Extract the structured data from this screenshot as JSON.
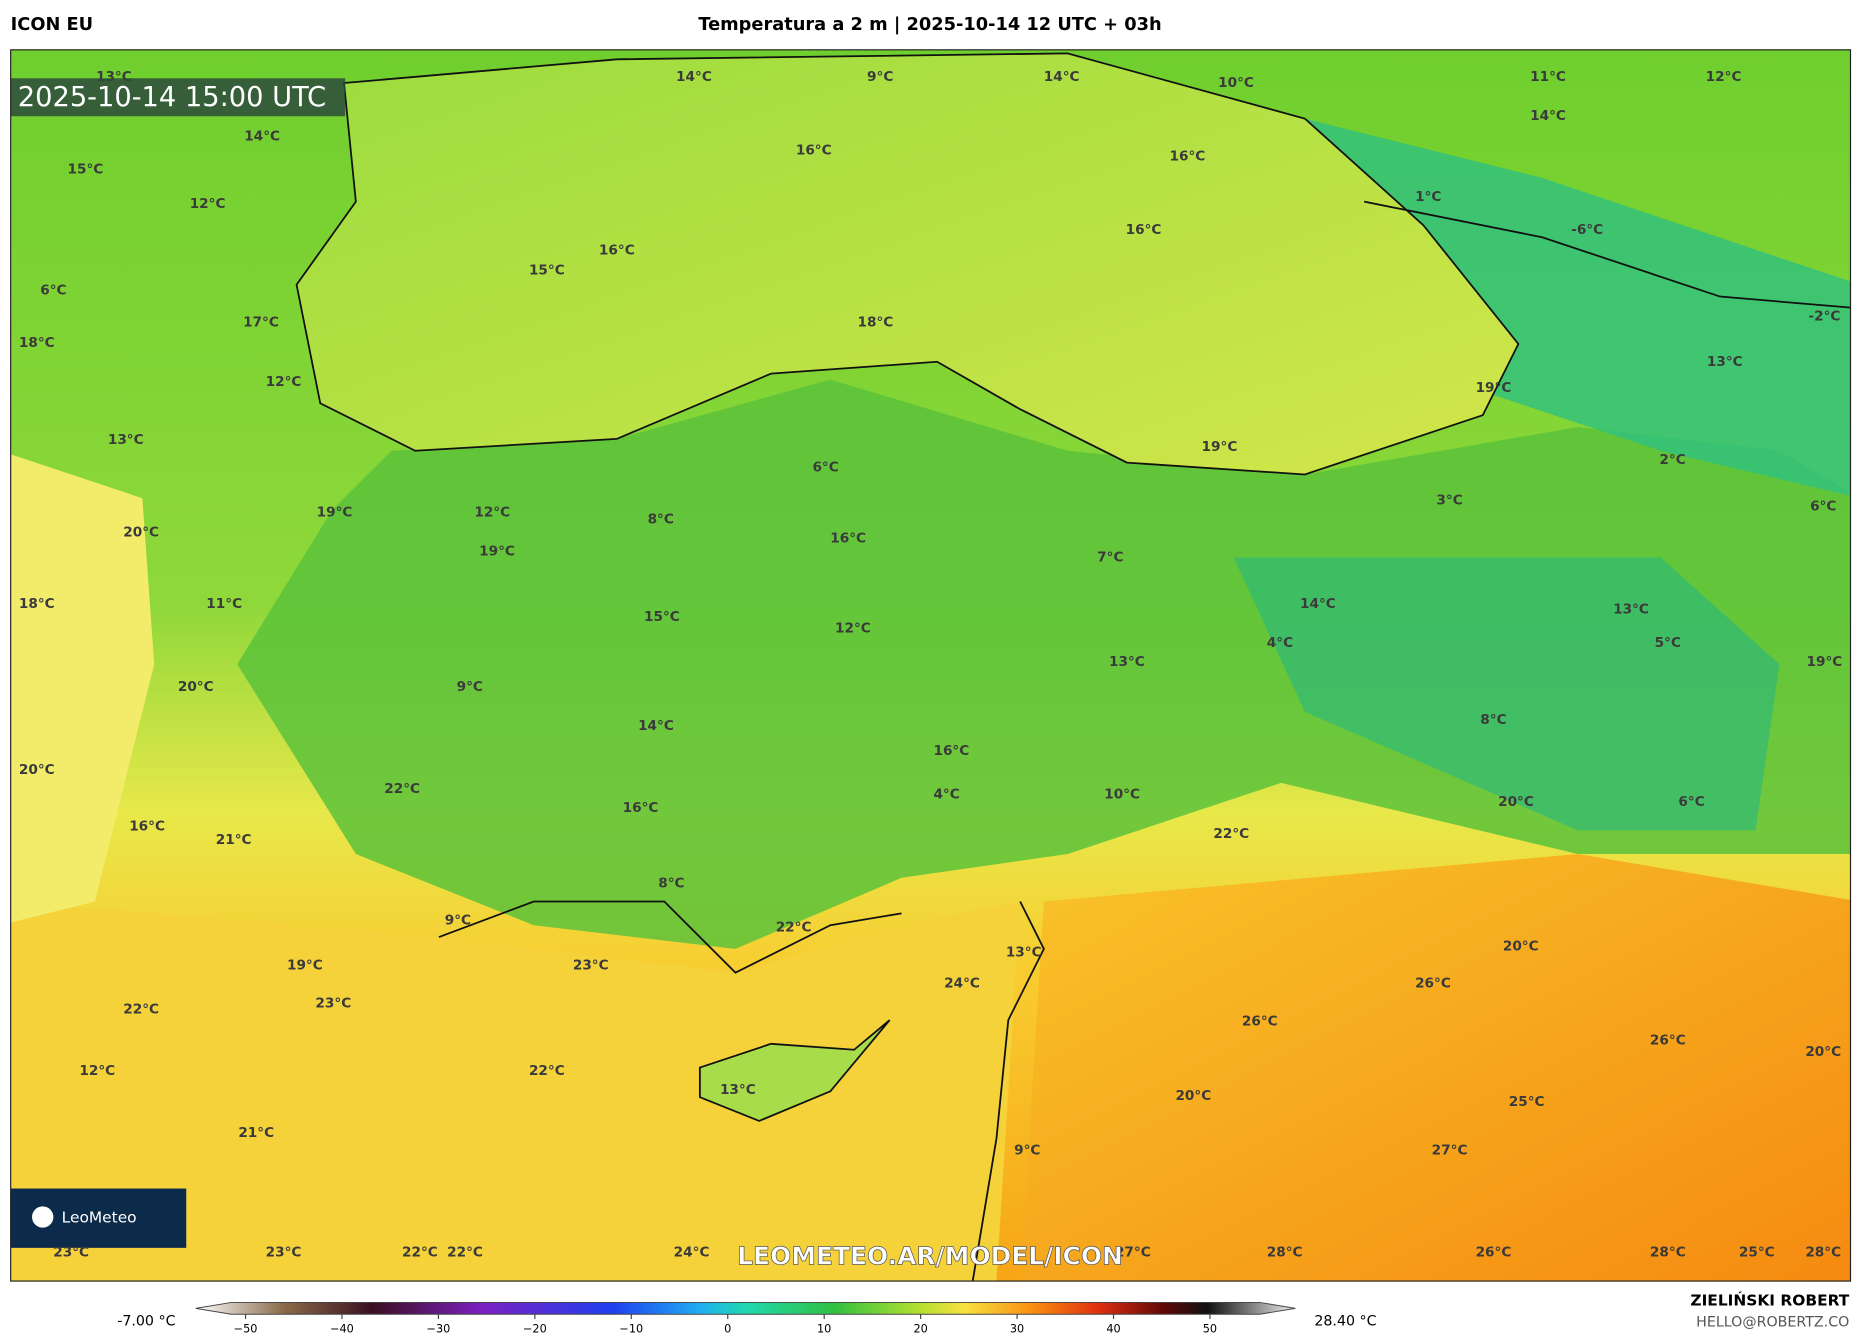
{
  "header": {
    "model": "ICON EU",
    "title": "Temperatura a 2 m | 2025-10-14 12 UTC + 03h"
  },
  "map": {
    "timestamp": "2025-10-14 15:00 UTC",
    "watermark": "LEOMETEO.AR/MODEL/ICON",
    "logo": "LeoMeteo",
    "labels": [
      "13°C",
      "14°C",
      "9°C",
      "14°C",
      "10°C",
      "11°C",
      "12°C",
      "14°C",
      "14°C",
      "15°C",
      "16°C",
      "16°C",
      "12°C",
      "1°C",
      "-6°C",
      "16°C",
      "16°C",
      "15°C",
      "6°C",
      "18°C",
      "17°C",
      "-2°C",
      "18°C",
      "13°C",
      "19°C",
      "12°C",
      "19°C",
      "13°C",
      "2°C",
      "6°C",
      "3°C",
      "6°C",
      "19°C",
      "12°C",
      "8°C",
      "20°C",
      "16°C",
      "19°C",
      "7°C",
      "18°C",
      "11°C",
      "14°C",
      "13°C",
      "15°C",
      "12°C",
      "4°C",
      "5°C",
      "13°C",
      "19°C",
      "20°C",
      "9°C",
      "14°C",
      "8°C",
      "16°C",
      "20°C",
      "22°C",
      "4°C",
      "10°C",
      "16°C",
      "20°C",
      "6°C",
      "16°C",
      "22°C",
      "21°C",
      "8°C",
      "22°C",
      "9°C",
      "20°C",
      "13°C",
      "23°C",
      "19°C",
      "24°C",
      "26°C",
      "23°C",
      "22°C",
      "26°C",
      "26°C",
      "20°C",
      "12°C",
      "22°C",
      "13°C",
      "20°C",
      "25°C",
      "9°C",
      "27°C",
      "21°C",
      "23°C",
      "23°C",
      "22°C",
      "22°C",
      "24°C",
      "27°C",
      "28°C",
      "26°C",
      "28°C",
      "25°C",
      "28°C"
    ]
  },
  "colorbar": {
    "min_label": "-7.00 °C",
    "max_label": "28.40 °C",
    "ticks": [
      {
        "value": -50,
        "label": "−50"
      },
      {
        "value": -40,
        "label": "−40"
      },
      {
        "value": -30,
        "label": "−30"
      },
      {
        "value": -20,
        "label": "−20"
      },
      {
        "value": -10,
        "label": "−10"
      },
      0,
      10,
      20,
      30,
      40,
      50
    ]
  },
  "footer": {
    "author": "ZIELIŃSKI ROBERT",
    "email": "HELLO@ROBERTZ.CO"
  }
}
